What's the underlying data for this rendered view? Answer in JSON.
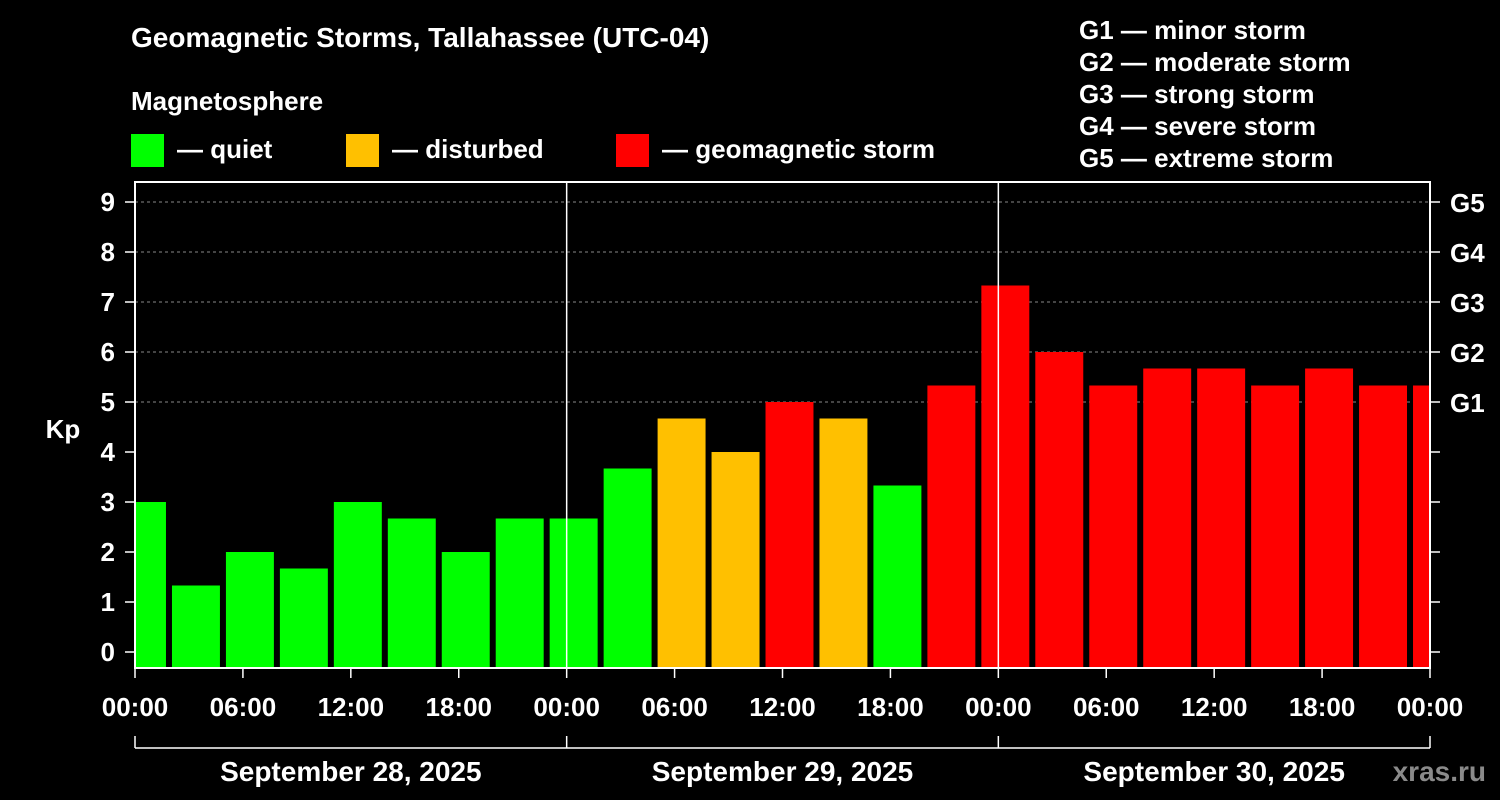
{
  "title": "Geomagnetic Storms, Tallahassee (UTC-04)",
  "subtitle": "Magnetosphere",
  "legend": [
    {
      "label": "— quiet",
      "color": "#00ff00"
    },
    {
      "label": "— disturbed",
      "color": "#ffc000"
    },
    {
      "label": "— geomagnetic storm",
      "color": "#ff0000"
    }
  ],
  "g_scale": [
    "G1 — minor storm",
    "G2 — moderate storm",
    "G3 — strong storm",
    "G4 — severe storm",
    "G5 — extreme storm"
  ],
  "watermark": "xras.ru",
  "chart_data": {
    "type": "bar",
    "title": "Geomagnetic Storms, Tallahassee (UTC-04)",
    "ylabel": "Kp",
    "ylim": [
      0,
      9
    ],
    "yticks": [
      "0",
      "1",
      "2",
      "3",
      "4",
      "5",
      "6",
      "7",
      "8",
      "9"
    ],
    "right_ticks": [
      {
        "label": "G1",
        "value": 5
      },
      {
        "label": "G2",
        "value": 6
      },
      {
        "label": "G3",
        "value": 7
      },
      {
        "label": "G4",
        "value": 8
      },
      {
        "label": "G5",
        "value": 9
      }
    ],
    "xlim_hours": [
      0,
      72
    ],
    "xtick_labels": [
      "00:00",
      "06:00",
      "12:00",
      "18:00",
      "00:00",
      "06:00",
      "12:00",
      "18:00",
      "00:00",
      "06:00",
      "12:00",
      "18:00",
      "00:00"
    ],
    "day_labels": [
      "September 28, 2025",
      "September 29, 2025",
      "September 30, 2025"
    ],
    "grid": true,
    "colors": {
      "quiet": "#00ff00",
      "disturbed": "#ffc000",
      "storm": "#ff0000"
    },
    "bars": [
      {
        "start_h": -1,
        "end_h": 2,
        "kp": 3.0,
        "level": "quiet"
      },
      {
        "start_h": 2,
        "end_h": 5,
        "kp": 1.33,
        "level": "quiet"
      },
      {
        "start_h": 5,
        "end_h": 8,
        "kp": 2.0,
        "level": "quiet"
      },
      {
        "start_h": 8,
        "end_h": 11,
        "kp": 1.67,
        "level": "quiet"
      },
      {
        "start_h": 11,
        "end_h": 14,
        "kp": 3.0,
        "level": "quiet"
      },
      {
        "start_h": 14,
        "end_h": 17,
        "kp": 2.67,
        "level": "quiet"
      },
      {
        "start_h": 17,
        "end_h": 20,
        "kp": 2.0,
        "level": "quiet"
      },
      {
        "start_h": 20,
        "end_h": 23,
        "kp": 2.67,
        "level": "quiet"
      },
      {
        "start_h": 23,
        "end_h": 26,
        "kp": 2.67,
        "level": "quiet"
      },
      {
        "start_h": 26,
        "end_h": 29,
        "kp": 3.67,
        "level": "quiet"
      },
      {
        "start_h": 29,
        "end_h": 32,
        "kp": 4.67,
        "level": "disturbed"
      },
      {
        "start_h": 32,
        "end_h": 35,
        "kp": 4.0,
        "level": "disturbed"
      },
      {
        "start_h": 35,
        "end_h": 38,
        "kp": 5.0,
        "level": "storm"
      },
      {
        "start_h": 38,
        "end_h": 41,
        "kp": 4.67,
        "level": "disturbed"
      },
      {
        "start_h": 41,
        "end_h": 44,
        "kp": 3.33,
        "level": "quiet"
      },
      {
        "start_h": 44,
        "end_h": 47,
        "kp": 5.33,
        "level": "storm"
      },
      {
        "start_h": 47,
        "end_h": 50,
        "kp": 7.33,
        "level": "storm"
      },
      {
        "start_h": 50,
        "end_h": 53,
        "kp": 6.0,
        "level": "storm"
      },
      {
        "start_h": 53,
        "end_h": 56,
        "kp": 5.33,
        "level": "storm"
      },
      {
        "start_h": 56,
        "end_h": 59,
        "kp": 5.67,
        "level": "storm"
      },
      {
        "start_h": 59,
        "end_h": 62,
        "kp": 5.67,
        "level": "storm"
      },
      {
        "start_h": 62,
        "end_h": 65,
        "kp": 5.33,
        "level": "storm"
      },
      {
        "start_h": 65,
        "end_h": 68,
        "kp": 5.67,
        "level": "storm"
      },
      {
        "start_h": 68,
        "end_h": 71,
        "kp": 5.33,
        "level": "storm"
      },
      {
        "start_h": 71,
        "end_h": 74,
        "kp": 5.33,
        "level": "storm"
      }
    ]
  }
}
